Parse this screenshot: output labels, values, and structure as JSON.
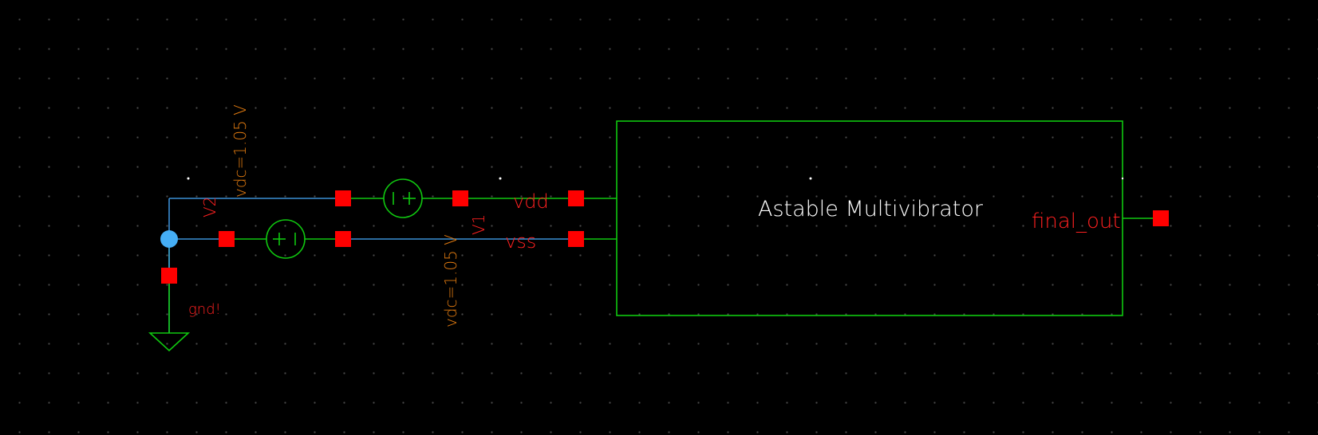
{
  "block": {
    "title": "Astable Multivibrator",
    "pins": {
      "vdd": "vdd",
      "vss": "vss",
      "out": "final_out"
    }
  },
  "sources": {
    "v1": {
      "name": "V1",
      "param": "vdc=1.05 V"
    },
    "v2": {
      "name": "V2",
      "param": "vdc=1.05 V"
    }
  },
  "ground": {
    "name": "gnd!"
  },
  "colors": {
    "background": "#000000",
    "net_wire": "#3b8fd6",
    "component": "#10c810",
    "pin_square": "#ff0000",
    "pin_text": "#ff2020",
    "param_text": "#e07a10",
    "block_text": "#ffffff",
    "junction": "#45aef5"
  }
}
